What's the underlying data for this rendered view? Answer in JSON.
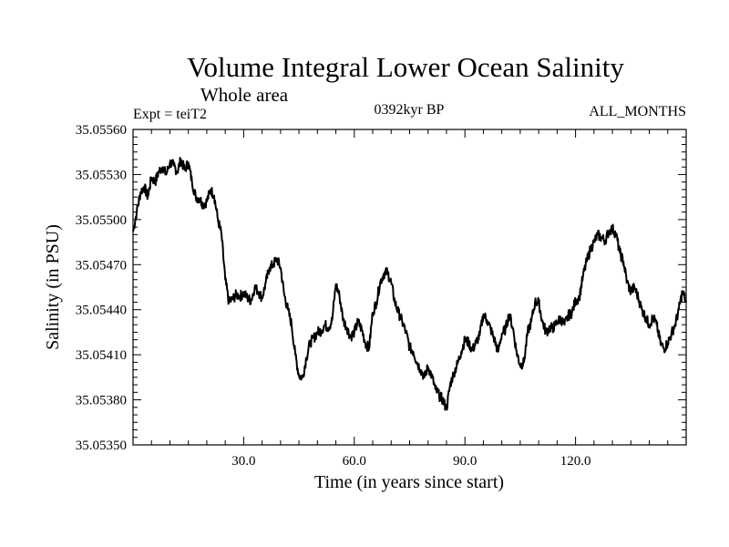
{
  "chart_data": {
    "type": "line",
    "title": "Volume Integral Lower Ocean Salinity",
    "subtitle": "Whole area",
    "left_label": "Expt = teiT2",
    "center_label": "0392kyr BP",
    "right_label": "ALL_MONTHS",
    "xlabel": "Time (in years since start)",
    "ylabel": "Salinity (in PSU)",
    "xlim": [
      0,
      150
    ],
    "ylim": [
      35.0535,
      35.0556
    ],
    "x_ticks": [
      30.0,
      60.0,
      90.0,
      120.0
    ],
    "x_tick_labels": [
      "30.0",
      "60.0",
      "90.0",
      "120.0"
    ],
    "y_ticks": [
      35.0535,
      35.0538,
      35.0541,
      35.0544,
      35.0547,
      35.055,
      35.0553,
      35.0556
    ],
    "y_tick_labels": [
      "35.05350",
      "35.05380",
      "35.05410",
      "35.05440",
      "35.05470",
      "35.05500",
      "35.05530",
      "35.05560"
    ],
    "grid": false,
    "series": [
      {
        "name": "Salinity",
        "color": "#000000",
        "x": [
          0,
          1,
          2,
          3,
          4,
          5,
          6,
          7,
          8,
          9,
          10,
          11,
          12,
          13,
          14,
          15,
          16,
          17,
          18,
          19,
          20,
          21,
          22,
          23,
          24,
          25,
          26,
          27,
          28,
          29,
          30,
          31,
          32,
          33,
          34,
          35,
          36,
          37,
          38,
          39,
          40,
          41,
          42,
          43,
          44,
          45,
          46,
          47,
          48,
          49,
          50,
          51,
          52,
          53,
          54,
          55,
          56,
          57,
          58,
          59,
          60,
          61,
          62,
          63,
          64,
          65,
          66,
          67,
          68,
          69,
          70,
          71,
          72,
          73,
          74,
          75,
          76,
          77,
          78,
          79,
          80,
          81,
          82,
          83,
          84,
          85,
          86,
          87,
          88,
          89,
          90,
          91,
          92,
          93,
          94,
          95,
          96,
          97,
          98,
          99,
          100,
          101,
          102,
          103,
          104,
          105,
          106,
          107,
          108,
          109,
          110,
          111,
          112,
          113,
          114,
          115,
          116,
          117,
          118,
          119,
          120,
          121,
          122,
          123,
          124,
          125,
          126,
          127,
          128,
          129,
          130,
          131,
          132,
          133,
          134,
          135,
          136,
          137,
          138,
          139,
          140,
          141,
          142,
          143,
          144,
          145,
          146,
          147,
          148,
          149,
          150
        ],
        "values": [
          35.05492,
          35.05505,
          35.05518,
          35.05522,
          35.05515,
          35.05528,
          35.05525,
          35.05532,
          35.05535,
          35.0553,
          35.05538,
          35.05536,
          35.05532,
          35.0554,
          35.05533,
          35.05538,
          35.05525,
          35.05515,
          35.05514,
          35.0551,
          35.05512,
          35.0552,
          35.05516,
          35.055,
          35.0549,
          35.0546,
          35.05445,
          35.05447,
          35.0545,
          35.05449,
          35.05451,
          35.05448,
          35.05446,
          35.05455,
          35.05452,
          35.05448,
          35.05458,
          35.05468,
          35.0547,
          35.05474,
          35.05468,
          35.0545,
          35.0544,
          35.0543,
          35.0541,
          35.05396,
          35.05395,
          35.05408,
          35.05418,
          35.05421,
          35.05425,
          35.05426,
          35.0543,
          35.05428,
          35.05433,
          35.05457,
          35.05449,
          35.05433,
          35.05428,
          35.05422,
          35.05425,
          35.05432,
          35.05427,
          35.05418,
          35.05414,
          35.05438,
          35.05445,
          35.05458,
          35.05464,
          35.05465,
          35.05458,
          35.05445,
          35.05438,
          35.05432,
          35.05425,
          35.05415,
          35.05412,
          35.05405,
          35.054,
          35.05395,
          35.05402,
          35.05396,
          35.05387,
          35.05383,
          35.0538,
          35.05374,
          35.0539,
          35.05398,
          35.05404,
          35.05412,
          35.0542,
          35.05418,
          35.05413,
          35.05418,
          35.05423,
          35.05437,
          35.05433,
          35.05427,
          35.0542,
          35.05412,
          35.05424,
          35.05427,
          35.05437,
          35.05428,
          35.05412,
          35.05403,
          35.05405,
          35.05425,
          35.05432,
          35.05445,
          35.05445,
          35.05432,
          35.05425,
          35.05428,
          35.05428,
          35.05432,
          35.05434,
          35.0543,
          35.05436,
          35.05438,
          35.05446,
          35.05448,
          35.05462,
          35.05472,
          35.0548,
          35.05485,
          35.0549,
          35.05488,
          35.05486,
          35.05492,
          35.05494,
          35.0549,
          35.05478,
          35.05472,
          35.05458,
          35.05452,
          35.05455,
          35.05448,
          35.0544,
          35.05435,
          35.0543,
          35.05435,
          35.0543,
          35.05418,
          35.05414,
          35.05418,
          35.05424,
          35.0543,
          35.0544,
          35.05452,
          35.05445
        ]
      }
    ]
  }
}
